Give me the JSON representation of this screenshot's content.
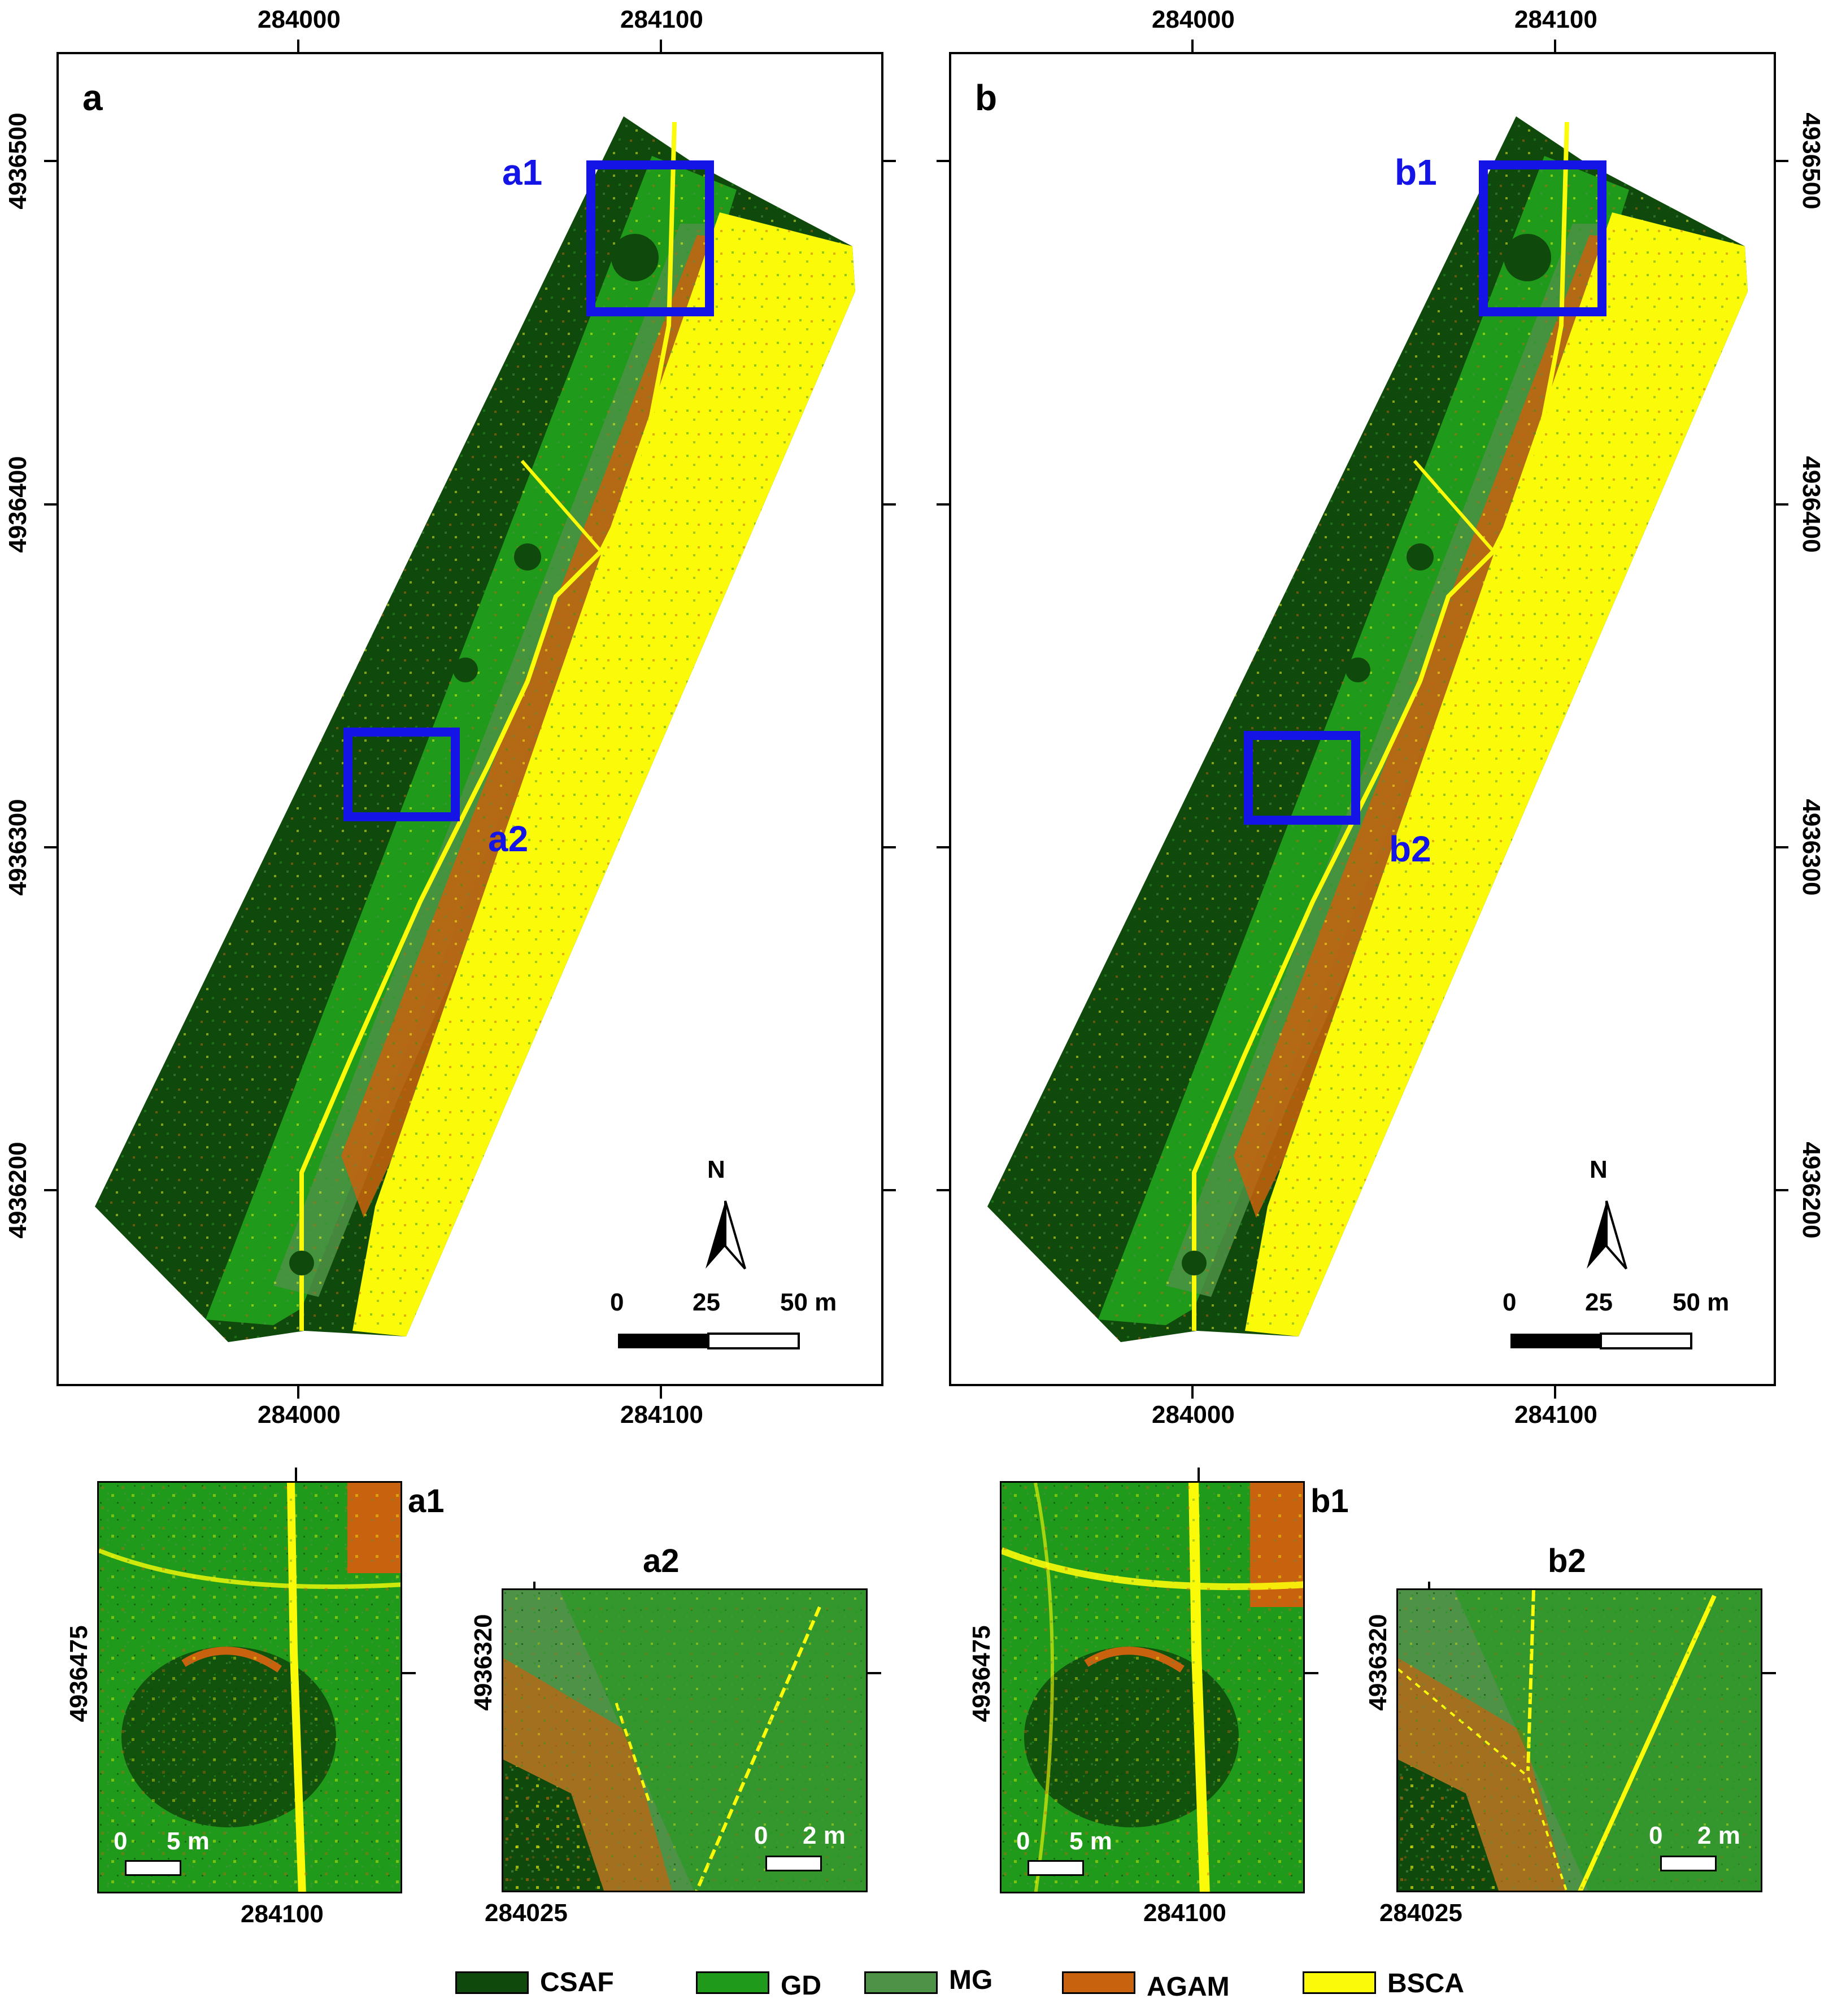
{
  "maps": [
    {
      "id": "a",
      "panel_label": "a",
      "x_ticks": [
        "284000",
        "284100"
      ],
      "y_ticks": [
        "4936500",
        "4936400",
        "4936300",
        "4936200"
      ],
      "box_labels": [
        "a1",
        "a2"
      ],
      "north": "N",
      "scale": [
        "0",
        "25",
        "50 m"
      ]
    },
    {
      "id": "b",
      "panel_label": "b",
      "x_ticks": [
        "284000",
        "284100"
      ],
      "y_ticks": [
        "4936500",
        "4936400",
        "4936300",
        "4936200"
      ],
      "box_labels": [
        "b1",
        "b2"
      ],
      "north": "N",
      "scale": [
        "0",
        "25",
        "50 m"
      ]
    }
  ],
  "insets": [
    {
      "id": "a1",
      "title": "a1",
      "y_tick": "4936475",
      "x_tick": "284100",
      "scale": [
        "0",
        "5 m"
      ]
    },
    {
      "id": "a2",
      "title": "a2",
      "y_tick": "4936320",
      "x_tick": "284025",
      "scale": [
        "0",
        "2 m"
      ]
    },
    {
      "id": "b1",
      "title": "b1",
      "y_tick": "4936475",
      "x_tick": "284100",
      "scale": [
        "0",
        "5 m"
      ]
    },
    {
      "id": "b2",
      "title": "b2",
      "y_tick": "4936320",
      "x_tick": "284025",
      "scale": [
        "0",
        "2 m"
      ]
    }
  ],
  "legend": [
    {
      "label": "CSAF",
      "color": "#0f4a0c"
    },
    {
      "label": "GD",
      "color": "#1f9a1a"
    },
    {
      "label": "MG",
      "color": "#4d9246"
    },
    {
      "label": "AGAM",
      "color": "#c8620e"
    },
    {
      "label": "BSCA",
      "color": "#fbfb09"
    }
  ],
  "colors": {
    "box_outline": "#1414e6",
    "csaf": "#0f4a0c",
    "gd": "#1f9a1a",
    "mg": "#4d9246",
    "agam": "#c8620e",
    "bsca": "#fbfb09"
  }
}
